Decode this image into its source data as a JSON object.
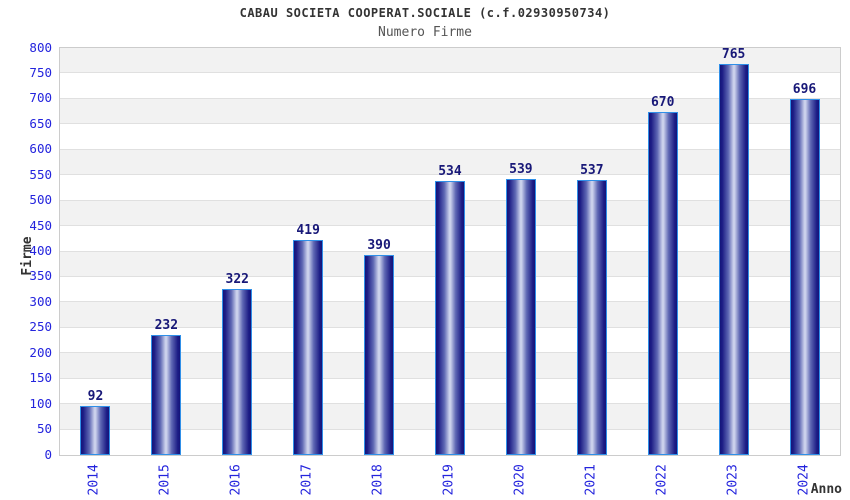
{
  "header": {
    "title": "CABAU SOCIETA COOPERAT.SOCIALE (c.f.02930950734)",
    "subtitle": "Numero Firme"
  },
  "chart_data": {
    "type": "bar",
    "title": "CABAU SOCIETA COOPERAT.SOCIALE (c.f.02930950734)",
    "subtitle": "Numero Firme",
    "categories": [
      "2014",
      "2015",
      "2016",
      "2017",
      "2018",
      "2019",
      "2020",
      "2021",
      "2022",
      "2023",
      "2024"
    ],
    "values": [
      92,
      232,
      322,
      419,
      390,
      534,
      539,
      537,
      670,
      765,
      696
    ],
    "xlabel": "Anno",
    "ylabel": "Firme",
    "ylim": [
      0,
      800
    ],
    "ytick_step": 50,
    "grid": true,
    "band_fill": true,
    "legend_position": "none"
  },
  "colors": {
    "tick_label": "#2424dd",
    "value_label": "#181878",
    "bar_edge": "#2f8fe8",
    "bar_dark": "#15157a",
    "bar_light": "#ccd2ec",
    "band_gray": "#f2f2f2",
    "band_white": "#ffffff",
    "gridline": "#e0e0e0",
    "plot_border": "#cccccc",
    "title_color": "#333333",
    "subtitle_color": "#555555"
  }
}
